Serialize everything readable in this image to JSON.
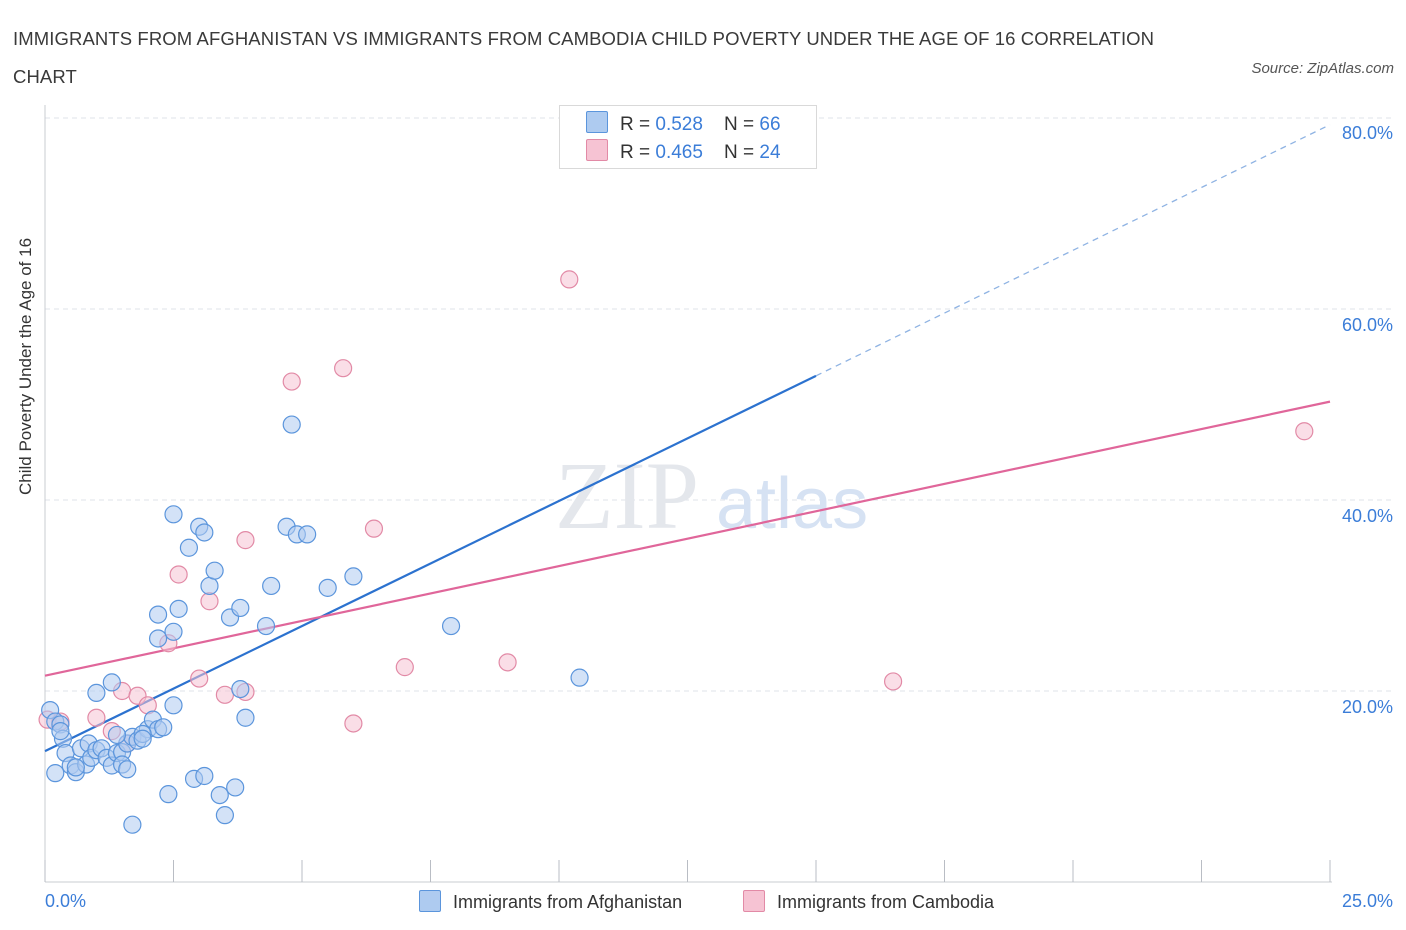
{
  "title": "IMMIGRANTS FROM AFGHANISTAN VS IMMIGRANTS FROM CAMBODIA CHILD POVERTY UNDER THE AGE OF 16 CORRELATION CHART",
  "source": "Source: ZipAtlas.com",
  "watermark": {
    "zip": "ZIP",
    "atlas": "atlas"
  },
  "legend": {
    "rows": [
      {
        "r_label": "R = ",
        "r_value": "0.528",
        "n_label": "N = ",
        "n_value": "66",
        "color": "#aecbf0"
      },
      {
        "r_label": "R = ",
        "r_value": "0.465",
        "n_label": "N = ",
        "n_value": "24",
        "color": "#f6bfd0"
      }
    ]
  },
  "bottom_legend": [
    "Immigrants from Afghanistan",
    "Immigrants from Cambodia"
  ],
  "colors": {
    "blue_fill": "#aecbf0",
    "blue_stroke": "#5b95dc",
    "blue_line": "#2c72cf",
    "pink_fill": "#f6c3d3",
    "pink_stroke": "#e28aa6",
    "pink_line": "#e0669a",
    "axis_text": "#3b7dd8",
    "grid": "#dfe3ea"
  },
  "chart_data": {
    "type": "scatter",
    "title": "IMMIGRANTS FROM AFGHANISTAN VS IMMIGRANTS FROM CAMBODIA CHILD POVERTY UNDER THE AGE OF 16 CORRELATION CHART",
    "xlabel": "",
    "ylabel": "Child Poverty Under the Age of 16",
    "xlim": [
      0,
      25
    ],
    "ylim": [
      0,
      80
    ],
    "x_tick_labels": [
      "0.0%",
      "25.0%"
    ],
    "y_ticks": [
      20,
      40,
      60,
      80
    ],
    "y_tick_labels": [
      "20.0%",
      "40.0%",
      "60.0%",
      "80.0%"
    ],
    "grid": true,
    "legend_placement": "top-center",
    "series": [
      {
        "name": "Immigrants from Afghanistan",
        "color": "#5b95dc",
        "R": 0.528,
        "N": 66,
        "trend": {
          "x": [
            0,
            15
          ],
          "y": [
            13.7,
            53.0
          ],
          "extended_to": [
            25,
            79.3
          ]
        },
        "points": [
          [
            0.1,
            18.0
          ],
          [
            0.2,
            16.8
          ],
          [
            0.3,
            16.5
          ],
          [
            0.35,
            15.0
          ],
          [
            0.4,
            13.5
          ],
          [
            0.5,
            12.2
          ],
          [
            0.6,
            11.5
          ],
          [
            0.2,
            11.4
          ],
          [
            0.7,
            14.0
          ],
          [
            0.8,
            12.3
          ],
          [
            0.85,
            14.5
          ],
          [
            0.9,
            13.0
          ],
          [
            1.0,
            13.8
          ],
          [
            1.1,
            14.0
          ],
          [
            1.2,
            13.0
          ],
          [
            1.3,
            12.2
          ],
          [
            1.4,
            13.5
          ],
          [
            1.5,
            13.6
          ],
          [
            1.6,
            14.5
          ],
          [
            1.7,
            15.2
          ],
          [
            1.8,
            14.8
          ],
          [
            1.4,
            15.4
          ],
          [
            1.5,
            12.3
          ],
          [
            1.6,
            11.8
          ],
          [
            1.0,
            19.8
          ],
          [
            1.3,
            20.9
          ],
          [
            2.0,
            16.0
          ],
          [
            2.1,
            17.0
          ],
          [
            2.2,
            16.0
          ],
          [
            2.3,
            16.2
          ],
          [
            1.9,
            15.5
          ],
          [
            2.5,
            18.5
          ],
          [
            2.2,
            25.5
          ],
          [
            2.5,
            26.2
          ],
          [
            2.2,
            28.0
          ],
          [
            2.6,
            28.6
          ],
          [
            2.4,
            9.2
          ],
          [
            2.9,
            10.8
          ],
          [
            3.1,
            11.1
          ],
          [
            3.4,
            9.1
          ],
          [
            3.7,
            9.9
          ],
          [
            3.5,
            7.0
          ],
          [
            1.7,
            6.0
          ],
          [
            2.5,
            38.5
          ],
          [
            2.8,
            35.0
          ],
          [
            3.0,
            37.2
          ],
          [
            3.1,
            36.6
          ],
          [
            3.2,
            31.0
          ],
          [
            3.3,
            32.6
          ],
          [
            3.6,
            27.7
          ],
          [
            3.8,
            28.7
          ],
          [
            3.8,
            20.2
          ],
          [
            3.9,
            17.2
          ],
          [
            4.3,
            26.8
          ],
          [
            4.4,
            31.0
          ],
          [
            4.7,
            37.2
          ],
          [
            4.9,
            36.4
          ],
          [
            5.1,
            36.4
          ],
          [
            4.8,
            47.9
          ],
          [
            5.5,
            30.8
          ],
          [
            6.0,
            32.0
          ],
          [
            7.9,
            26.8
          ],
          [
            10.4,
            21.4
          ],
          [
            1.9,
            15.0
          ],
          [
            0.3,
            15.8
          ],
          [
            0.6,
            12.0
          ]
        ]
      },
      {
        "name": "Immigrants from Cambodia",
        "color": "#e28aa6",
        "R": 0.465,
        "N": 24,
        "trend": {
          "x": [
            0,
            25
          ],
          "y": [
            21.6,
            50.3
          ]
        },
        "points": [
          [
            0.05,
            17.0
          ],
          [
            0.3,
            16.8
          ],
          [
            1.0,
            17.2
          ],
          [
            1.3,
            15.8
          ],
          [
            1.5,
            20.0
          ],
          [
            1.6,
            14.5
          ],
          [
            1.8,
            19.5
          ],
          [
            2.0,
            18.5
          ],
          [
            2.4,
            25.0
          ],
          [
            2.6,
            32.2
          ],
          [
            3.0,
            21.3
          ],
          [
            3.2,
            29.4
          ],
          [
            3.5,
            19.6
          ],
          [
            3.9,
            19.9
          ],
          [
            3.9,
            35.8
          ],
          [
            4.8,
            52.4
          ],
          [
            5.8,
            53.8
          ],
          [
            6.0,
            16.6
          ],
          [
            6.4,
            37.0
          ],
          [
            7.0,
            22.5
          ],
          [
            9.0,
            23.0
          ],
          [
            10.2,
            63.1
          ],
          [
            16.5,
            21.0
          ],
          [
            24.5,
            47.2
          ]
        ]
      }
    ]
  }
}
